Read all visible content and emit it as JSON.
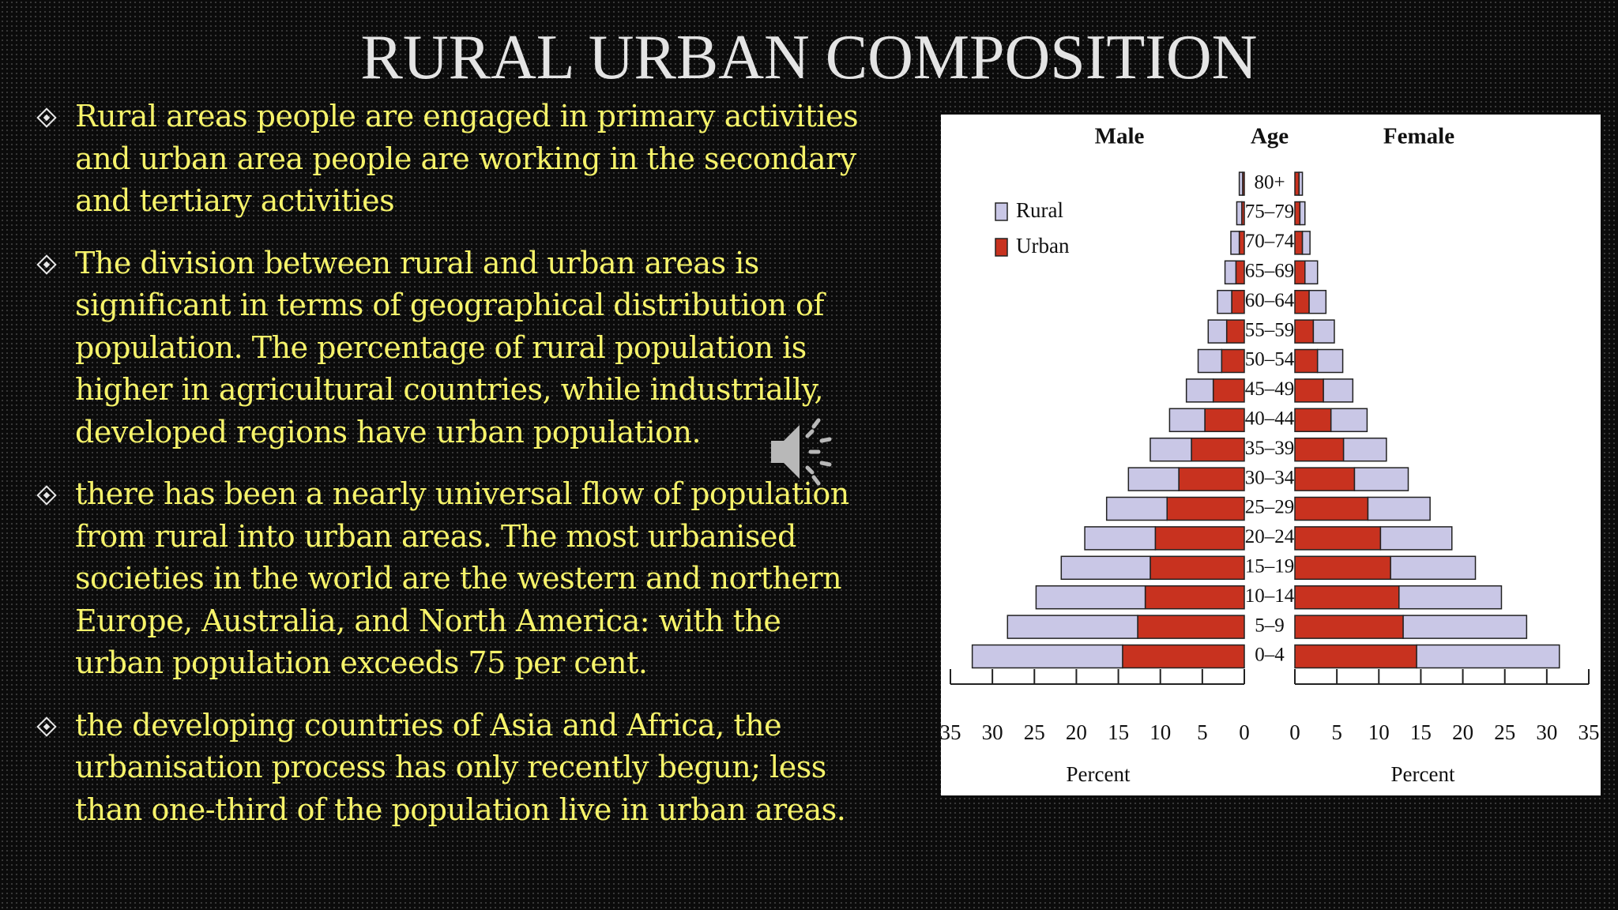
{
  "header": {
    "title": "RURAL URBAN COMPOSITION"
  },
  "bullets": [
    [
      "Rural areas people are engaged in primary activities",
      "and urban area people are working in the secondary",
      "and tertiary activities"
    ],
    [
      "The division between rural and urban areas is",
      "significant in terms of geographical distribution of",
      "population. The percentage of rural population is",
      "higher in agricultural countries, while industrially,",
      "developed regions have  urban population."
    ],
    [
      "there has been a nearly universal flow of population",
      "from rural into urban areas. The most urbanised",
      "societies in the world are the western and northern",
      "Europe, Australia,  and North America:   with the",
      "urban population exceeds 75 per cent."
    ],
    [
      "the developing countries of Asia and Africa, the",
      "urbanisation process has only recently begun; less",
      "than one-third of the population live in urban areas."
    ]
  ],
  "chart_data": {
    "type": "population-pyramid",
    "titles": {
      "male": "Male",
      "age": "Age",
      "female": "Female"
    },
    "xlabel": "Percent",
    "categories": [
      "0–4",
      "5–9",
      "10–14",
      "15–19",
      "20–24",
      "25–29",
      "30–34",
      "35–39",
      "40–44",
      "45–49",
      "50–54",
      "55–59",
      "60–64",
      "65–69",
      "70–74",
      "75–79",
      "80+"
    ],
    "series": [
      {
        "name": "Rural",
        "color": "#c9c7e6",
        "male": [
          17.9,
          15.5,
          13.0,
          10.6,
          8.4,
          7.2,
          6.0,
          4.9,
          4.2,
          3.2,
          2.8,
          2.2,
          1.7,
          1.3,
          1.0,
          0.6,
          0.4
        ],
        "female": [
          17.0,
          14.7,
          12.2,
          10.1,
          8.5,
          7.4,
          6.4,
          5.1,
          4.3,
          3.5,
          3.0,
          2.5,
          2.0,
          1.5,
          0.9,
          0.6,
          0.4
        ]
      },
      {
        "name": "Urban",
        "color": "#c8321f",
        "male": [
          14.5,
          12.7,
          11.8,
          11.2,
          10.6,
          9.2,
          7.8,
          6.3,
          4.7,
          3.7,
          2.7,
          2.1,
          1.5,
          1.0,
          0.6,
          0.3,
          0.2
        ],
        "female": [
          14.5,
          12.9,
          12.4,
          11.4,
          10.2,
          8.7,
          7.1,
          5.8,
          4.3,
          3.4,
          2.7,
          2.2,
          1.7,
          1.2,
          0.9,
          0.6,
          0.5
        ]
      }
    ],
    "xlim": [
      0,
      35
    ],
    "xticks": [
      0,
      5,
      10,
      15,
      20,
      25,
      30,
      35
    ],
    "legend": "upper left"
  }
}
